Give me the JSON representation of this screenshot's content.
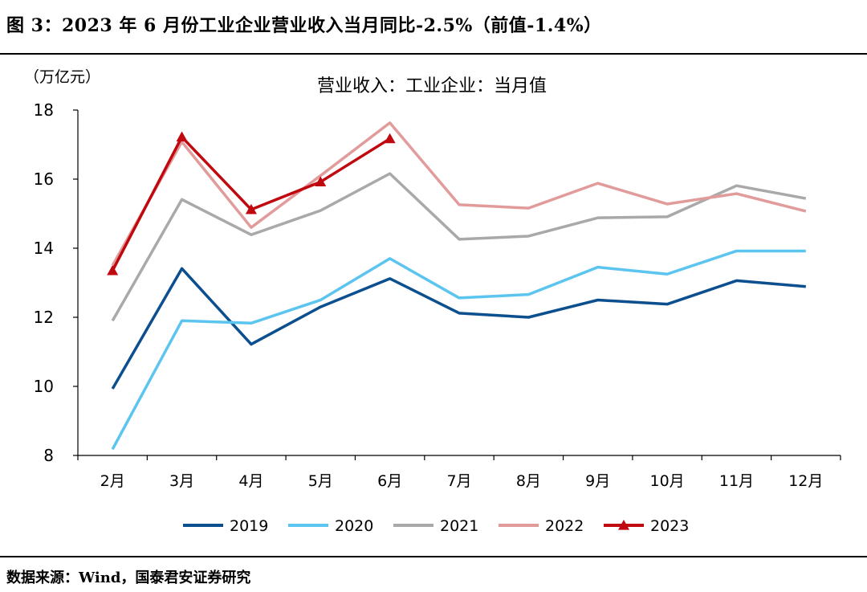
{
  "figure_title": "图 3：2023 年 6 月份工业企业营业收入当月同比-2.5%（前值-1.4%）",
  "source_note": "数据来源：Wind，国泰君安证券研究",
  "chart_data": {
    "type": "line",
    "title": "营业收入：工业企业：当月值",
    "unit_label": "（万亿元）",
    "xlabel": "",
    "ylabel": "",
    "categories": [
      "2月",
      "3月",
      "4月",
      "5月",
      "6月",
      "7月",
      "8月",
      "9月",
      "10月",
      "11月",
      "12月"
    ],
    "ylim": [
      8,
      18
    ],
    "yticks": [
      8,
      10,
      12,
      14,
      16,
      18
    ],
    "grid": false,
    "legend_position": "bottom",
    "series": [
      {
        "name": "2019",
        "color": "#0b4f8f",
        "marker": "none",
        "values": [
          9.93,
          13.41,
          11.22,
          12.3,
          13.12,
          12.12,
          12.0,
          12.5,
          12.38,
          13.06,
          12.89
        ]
      },
      {
        "name": "2020",
        "color": "#5bc5ef",
        "marker": "none",
        "values": [
          8.18,
          11.9,
          11.83,
          12.5,
          13.7,
          12.56,
          12.66,
          13.45,
          13.25,
          13.92,
          13.92
        ]
      },
      {
        "name": "2021",
        "color": "#a9a9a9",
        "marker": "none",
        "values": [
          11.9,
          15.41,
          14.39,
          15.09,
          16.16,
          14.26,
          14.35,
          14.88,
          14.91,
          15.81,
          15.44
        ]
      },
      {
        "name": "2022",
        "color": "#e29b9b",
        "marker": "none",
        "values": [
          13.5,
          17.08,
          14.6,
          16.1,
          17.63,
          15.26,
          15.16,
          15.88,
          15.28,
          15.58,
          15.07
        ]
      },
      {
        "name": "2023",
        "color": "#c0080f",
        "marker": "triangle",
        "values": [
          13.35,
          17.22,
          15.12,
          15.92,
          17.17,
          null,
          null,
          null,
          null,
          null,
          null
        ]
      }
    ]
  }
}
